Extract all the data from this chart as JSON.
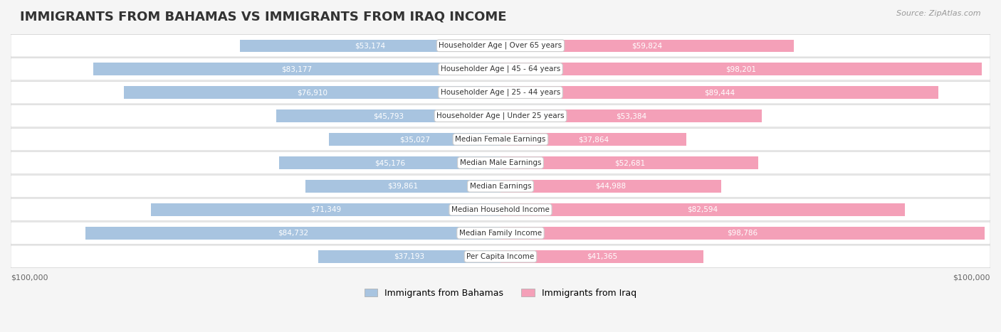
{
  "title": "IMMIGRANTS FROM BAHAMAS VS IMMIGRANTS FROM IRAQ INCOME",
  "source": "Source: ZipAtlas.com",
  "categories": [
    "Per Capita Income",
    "Median Family Income",
    "Median Household Income",
    "Median Earnings",
    "Median Male Earnings",
    "Median Female Earnings",
    "Householder Age | Under 25 years",
    "Householder Age | 25 - 44 years",
    "Householder Age | 45 - 64 years",
    "Householder Age | Over 65 years"
  ],
  "bahamas_values": [
    37193,
    84732,
    71349,
    39861,
    45176,
    35027,
    45793,
    76910,
    83177,
    53174
  ],
  "iraq_values": [
    41365,
    98786,
    82594,
    44988,
    52681,
    37864,
    53384,
    89444,
    98201,
    59824
  ],
  "bahamas_labels": [
    "$37,193",
    "$84,732",
    "$71,349",
    "$39,861",
    "$45,176",
    "$35,027",
    "$45,793",
    "$76,910",
    "$83,177",
    "$53,174"
  ],
  "iraq_labels": [
    "$41,365",
    "$98,786",
    "$82,594",
    "$44,988",
    "$52,681",
    "$37,864",
    "$53,384",
    "$89,444",
    "$98,201",
    "$59,824"
  ],
  "bahamas_color": "#a8c4e0",
  "iraq_color": "#f4a0b8",
  "bahamas_label_inside_color": "#ffffff",
  "iraq_label_inside_color": "#ffffff",
  "bahamas_label_outside_color": "#666666",
  "iraq_label_outside_color": "#666666",
  "max_value": 100000,
  "background_color": "#f5f5f5",
  "row_bg_color": "#ffffff",
  "legend_bahamas": "Immigrants from Bahamas",
  "legend_iraq": "Immigrants from Iraq",
  "xlabel_left": "$100,000",
  "xlabel_right": "$100,000"
}
